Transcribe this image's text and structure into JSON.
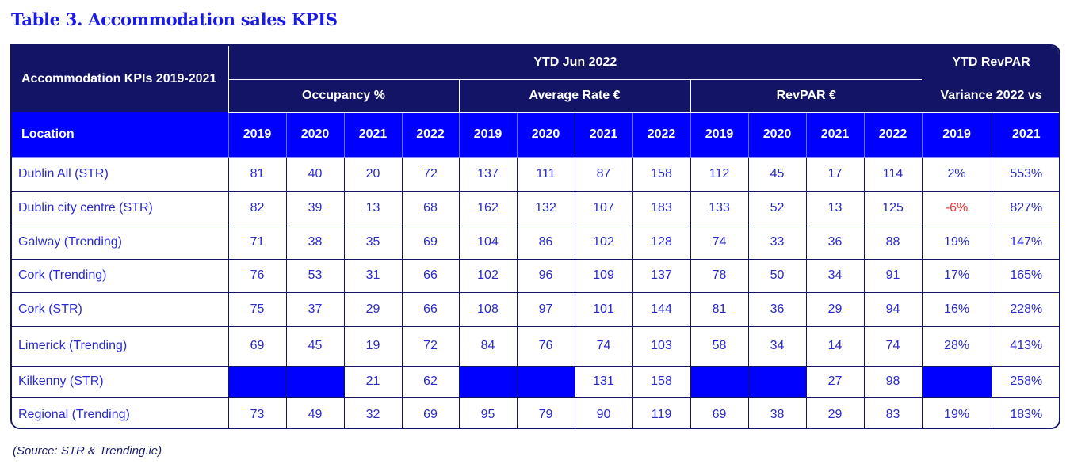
{
  "title": "Table 3. Accommodation sales KPIS",
  "header": {
    "corner": "Accommodation KPIs 2019-2021",
    "ytd": "YTD Jun 2022",
    "ytd_revpar": "YTD RevPAR",
    "occupancy": "Occupancy %",
    "avg_rate": "Average Rate €",
    "revpar": "RevPAR €",
    "variance": "Variance 2022 vs",
    "location": "Location",
    "years": [
      "2019",
      "2020",
      "2021",
      "2022",
      "2019",
      "2020",
      "2021",
      "2022",
      "2019",
      "2020",
      "2021",
      "2022",
      "2019",
      "2021"
    ]
  },
  "rows": [
    {
      "location": "Dublin All (STR)",
      "values": [
        "81",
        "40",
        "20",
        "72",
        "137",
        "111",
        "87",
        "158",
        "112",
        "45",
        "17",
        "114",
        "2%",
        "553%"
      ]
    },
    {
      "location": "Dublin city centre (STR)",
      "values": [
        "82",
        "39",
        "13",
        "68",
        "162",
        "132",
        "107",
        "183",
        "133",
        "52",
        "13",
        "125",
        "-6%",
        "827%"
      ]
    },
    {
      "location": "Galway (Trending)",
      "values": [
        "71",
        "38",
        "35",
        "69",
        "104",
        "86",
        "102",
        "128",
        "74",
        "33",
        "36",
        "88",
        "19%",
        "147%"
      ]
    },
    {
      "location": "Cork (Trending)",
      "values": [
        "76",
        "53",
        "31",
        "66",
        "102",
        "96",
        "109",
        "137",
        "78",
        "50",
        "34",
        "91",
        "17%",
        "165%"
      ]
    },
    {
      "location": "Cork (STR)",
      "values": [
        "75",
        "37",
        "29",
        "66",
        "108",
        "97",
        "101",
        "144",
        "81",
        "36",
        "29",
        "94",
        "16%",
        "228%"
      ]
    },
    {
      "location": "Limerick (Trending)",
      "values": [
        "69",
        "45",
        "19",
        "72",
        "84",
        "76",
        "74",
        "103",
        "58",
        "34",
        "14",
        "74",
        "28%",
        "413%"
      ]
    },
    {
      "location": "Kilkenny (STR)",
      "values": [
        "",
        "",
        "21",
        "62",
        "",
        "",
        "131",
        "158",
        "",
        "",
        "27",
        "98",
        "",
        "258%"
      ]
    },
    {
      "location": "Regional (Trending)",
      "values": [
        "73",
        "49",
        "32",
        "69",
        "95",
        "79",
        "90",
        "119",
        "69",
        "38",
        "29",
        "83",
        "19%",
        "183%"
      ]
    }
  ],
  "colors": {
    "navy": "#141466",
    "blue": "#0000ff",
    "text_blue": "#2a2acc",
    "negative": "#ff2a2a"
  },
  "source": "(Source: STR & Trending.ie)"
}
